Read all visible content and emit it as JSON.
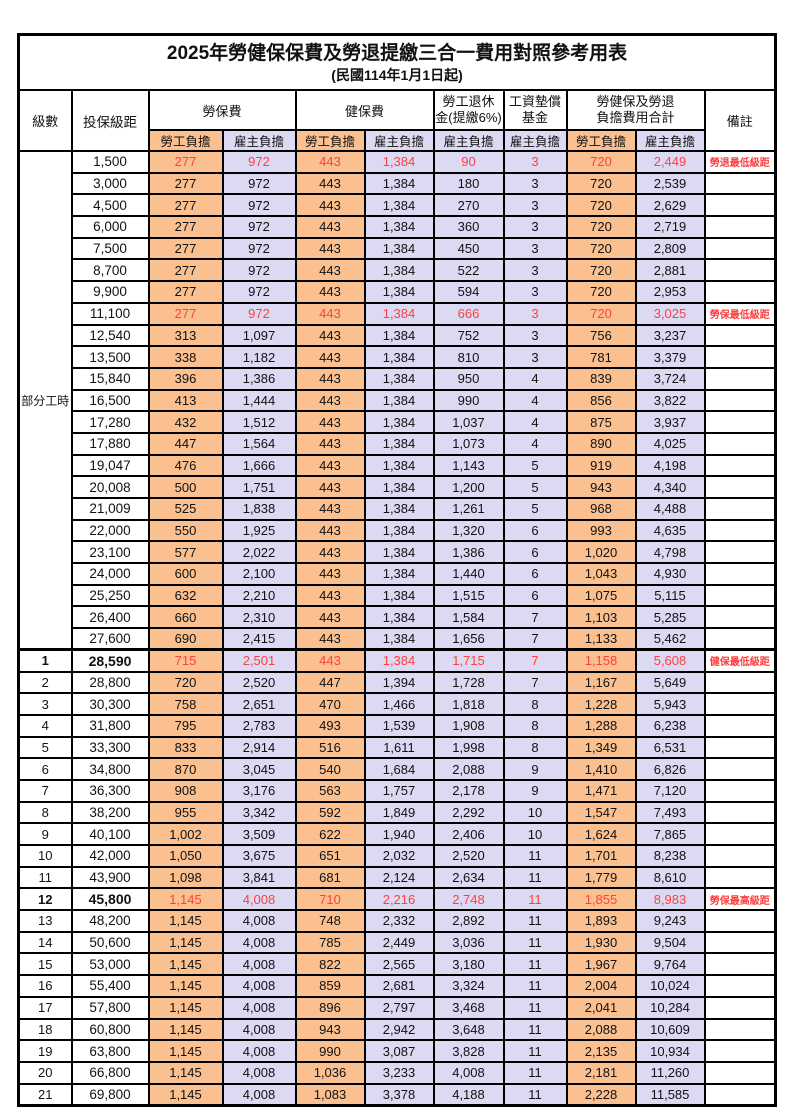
{
  "title": "2025年勞健保保費及勞退提繳三合一費用對照參考用表",
  "subtitle": "(民國114年1月1日起)",
  "group_label": "部分工時",
  "header": {
    "level": "級數",
    "bracket": "投保級距",
    "labor_fee": "勞保費",
    "health_fee": "健保費",
    "pension_line1": "勞工退休",
    "pension_line2": "金(提繳6%)",
    "wage_fund_line1": "工資墊償",
    "wage_fund_line2": "基金",
    "total_line1": "勞健保及勞退",
    "total_line2": "負擔費用合計",
    "note": "備註",
    "employee_share": "勞工負擔",
    "employer_share": "雇主負擔"
  },
  "colors": {
    "employee_bg": "#FAC08F",
    "employer_bg": "#DCD9F2",
    "highlight_text": "#FF4040"
  },
  "rows": [
    {
      "group": "parttime",
      "level": "",
      "bracket": "1,500",
      "values": [
        "277",
        "972",
        "443",
        "1,384",
        "90",
        "3",
        "720",
        "2,449"
      ],
      "note": "勞退最低級距",
      "highlight": true,
      "bold": false
    },
    {
      "group": "parttime",
      "level": "",
      "bracket": "3,000",
      "values": [
        "277",
        "972",
        "443",
        "1,384",
        "180",
        "3",
        "720",
        "2,539"
      ],
      "note": "",
      "highlight": false,
      "bold": false
    },
    {
      "group": "parttime",
      "level": "",
      "bracket": "4,500",
      "values": [
        "277",
        "972",
        "443",
        "1,384",
        "270",
        "3",
        "720",
        "2,629"
      ],
      "note": "",
      "highlight": false,
      "bold": false
    },
    {
      "group": "parttime",
      "level": "",
      "bracket": "6,000",
      "values": [
        "277",
        "972",
        "443",
        "1,384",
        "360",
        "3",
        "720",
        "2,719"
      ],
      "note": "",
      "highlight": false,
      "bold": false
    },
    {
      "group": "parttime",
      "level": "",
      "bracket": "7,500",
      "values": [
        "277",
        "972",
        "443",
        "1,384",
        "450",
        "3",
        "720",
        "2,809"
      ],
      "note": "",
      "highlight": false,
      "bold": false
    },
    {
      "group": "parttime",
      "level": "",
      "bracket": "8,700",
      "values": [
        "277",
        "972",
        "443",
        "1,384",
        "522",
        "3",
        "720",
        "2,881"
      ],
      "note": "",
      "highlight": false,
      "bold": false
    },
    {
      "group": "parttime",
      "level": "",
      "bracket": "9,900",
      "values": [
        "277",
        "972",
        "443",
        "1,384",
        "594",
        "3",
        "720",
        "2,953"
      ],
      "note": "",
      "highlight": false,
      "bold": false
    },
    {
      "group": "parttime",
      "level": "",
      "bracket": "11,100",
      "values": [
        "277",
        "972",
        "443",
        "1,384",
        "666",
        "3",
        "720",
        "3,025"
      ],
      "note": "勞保最低級距",
      "highlight": true,
      "bold": false
    },
    {
      "group": "parttime",
      "level": "",
      "bracket": "12,540",
      "values": [
        "313",
        "1,097",
        "443",
        "1,384",
        "752",
        "3",
        "756",
        "3,237"
      ],
      "note": "",
      "highlight": false,
      "bold": false
    },
    {
      "group": "parttime",
      "level": "",
      "bracket": "13,500",
      "values": [
        "338",
        "1,182",
        "443",
        "1,384",
        "810",
        "3",
        "781",
        "3,379"
      ],
      "note": "",
      "highlight": false,
      "bold": false
    },
    {
      "group": "parttime",
      "level": "",
      "bracket": "15,840",
      "values": [
        "396",
        "1,386",
        "443",
        "1,384",
        "950",
        "4",
        "839",
        "3,724"
      ],
      "note": "",
      "highlight": false,
      "bold": false
    },
    {
      "group": "parttime",
      "level": "",
      "bracket": "16,500",
      "values": [
        "413",
        "1,444",
        "443",
        "1,384",
        "990",
        "4",
        "856",
        "3,822"
      ],
      "note": "",
      "highlight": false,
      "bold": false
    },
    {
      "group": "parttime",
      "level": "",
      "bracket": "17,280",
      "values": [
        "432",
        "1,512",
        "443",
        "1,384",
        "1,037",
        "4",
        "875",
        "3,937"
      ],
      "note": "",
      "highlight": false,
      "bold": false
    },
    {
      "group": "parttime",
      "level": "",
      "bracket": "17,880",
      "values": [
        "447",
        "1,564",
        "443",
        "1,384",
        "1,073",
        "4",
        "890",
        "4,025"
      ],
      "note": "",
      "highlight": false,
      "bold": false
    },
    {
      "group": "parttime",
      "level": "",
      "bracket": "19,047",
      "values": [
        "476",
        "1,666",
        "443",
        "1,384",
        "1,143",
        "5",
        "919",
        "4,198"
      ],
      "note": "",
      "highlight": false,
      "bold": false
    },
    {
      "group": "parttime",
      "level": "",
      "bracket": "20,008",
      "values": [
        "500",
        "1,751",
        "443",
        "1,384",
        "1,200",
        "5",
        "943",
        "4,340"
      ],
      "note": "",
      "highlight": false,
      "bold": false
    },
    {
      "group": "parttime",
      "level": "",
      "bracket": "21,009",
      "values": [
        "525",
        "1,838",
        "443",
        "1,384",
        "1,261",
        "5",
        "968",
        "4,488"
      ],
      "note": "",
      "highlight": false,
      "bold": false
    },
    {
      "group": "parttime",
      "level": "",
      "bracket": "22,000",
      "values": [
        "550",
        "1,925",
        "443",
        "1,384",
        "1,320",
        "6",
        "993",
        "4,635"
      ],
      "note": "",
      "highlight": false,
      "bold": false
    },
    {
      "group": "parttime",
      "level": "",
      "bracket": "23,100",
      "values": [
        "577",
        "2,022",
        "443",
        "1,384",
        "1,386",
        "6",
        "1,020",
        "4,798"
      ],
      "note": "",
      "highlight": false,
      "bold": false
    },
    {
      "group": "parttime",
      "level": "",
      "bracket": "24,000",
      "values": [
        "600",
        "2,100",
        "443",
        "1,384",
        "1,440",
        "6",
        "1,043",
        "4,930"
      ],
      "note": "",
      "highlight": false,
      "bold": false
    },
    {
      "group": "parttime",
      "level": "",
      "bracket": "25,250",
      "values": [
        "632",
        "2,210",
        "443",
        "1,384",
        "1,515",
        "6",
        "1,075",
        "5,115"
      ],
      "note": "",
      "highlight": false,
      "bold": false
    },
    {
      "group": "parttime",
      "level": "",
      "bracket": "26,400",
      "values": [
        "660",
        "2,310",
        "443",
        "1,384",
        "1,584",
        "7",
        "1,103",
        "5,285"
      ],
      "note": "",
      "highlight": false,
      "bold": false
    },
    {
      "group": "parttime",
      "level": "",
      "bracket": "27,600",
      "values": [
        "690",
        "2,415",
        "443",
        "1,384",
        "1,656",
        "7",
        "1,133",
        "5,462"
      ],
      "note": "",
      "highlight": false,
      "bold": false
    },
    {
      "group": "level",
      "level": "1",
      "bracket": "28,590",
      "values": [
        "715",
        "2,501",
        "443",
        "1,384",
        "1,715",
        "7",
        "1,158",
        "5,608"
      ],
      "note": "健保最低級距",
      "highlight": true,
      "bold": true
    },
    {
      "group": "level",
      "level": "2",
      "bracket": "28,800",
      "values": [
        "720",
        "2,520",
        "447",
        "1,394",
        "1,728",
        "7",
        "1,167",
        "5,649"
      ],
      "note": "",
      "highlight": false,
      "bold": false
    },
    {
      "group": "level",
      "level": "3",
      "bracket": "30,300",
      "values": [
        "758",
        "2,651",
        "470",
        "1,466",
        "1,818",
        "8",
        "1,228",
        "5,943"
      ],
      "note": "",
      "highlight": false,
      "bold": false
    },
    {
      "group": "level",
      "level": "4",
      "bracket": "31,800",
      "values": [
        "795",
        "2,783",
        "493",
        "1,539",
        "1,908",
        "8",
        "1,288",
        "6,238"
      ],
      "note": "",
      "highlight": false,
      "bold": false
    },
    {
      "group": "level",
      "level": "5",
      "bracket": "33,300",
      "values": [
        "833",
        "2,914",
        "516",
        "1,611",
        "1,998",
        "8",
        "1,349",
        "6,531"
      ],
      "note": "",
      "highlight": false,
      "bold": false
    },
    {
      "group": "level",
      "level": "6",
      "bracket": "34,800",
      "values": [
        "870",
        "3,045",
        "540",
        "1,684",
        "2,088",
        "9",
        "1,410",
        "6,826"
      ],
      "note": "",
      "highlight": false,
      "bold": false
    },
    {
      "group": "level",
      "level": "7",
      "bracket": "36,300",
      "values": [
        "908",
        "3,176",
        "563",
        "1,757",
        "2,178",
        "9",
        "1,471",
        "7,120"
      ],
      "note": "",
      "highlight": false,
      "bold": false
    },
    {
      "group": "level",
      "level": "8",
      "bracket": "38,200",
      "values": [
        "955",
        "3,342",
        "592",
        "1,849",
        "2,292",
        "10",
        "1,547",
        "7,493"
      ],
      "note": "",
      "highlight": false,
      "bold": false
    },
    {
      "group": "level",
      "level": "9",
      "bracket": "40,100",
      "values": [
        "1,002",
        "3,509",
        "622",
        "1,940",
        "2,406",
        "10",
        "1,624",
        "7,865"
      ],
      "note": "",
      "highlight": false,
      "bold": false
    },
    {
      "group": "level",
      "level": "10",
      "bracket": "42,000",
      "values": [
        "1,050",
        "3,675",
        "651",
        "2,032",
        "2,520",
        "11",
        "1,701",
        "8,238"
      ],
      "note": "",
      "highlight": false,
      "bold": false
    },
    {
      "group": "level",
      "level": "11",
      "bracket": "43,900",
      "values": [
        "1,098",
        "3,841",
        "681",
        "2,124",
        "2,634",
        "11",
        "1,779",
        "8,610"
      ],
      "note": "",
      "highlight": false,
      "bold": false
    },
    {
      "group": "level",
      "level": "12",
      "bracket": "45,800",
      "values": [
        "1,145",
        "4,008",
        "710",
        "2,216",
        "2,748",
        "11",
        "1,855",
        "8,983"
      ],
      "note": "勞保最高級距",
      "highlight": true,
      "bold": true
    },
    {
      "group": "level",
      "level": "13",
      "bracket": "48,200",
      "values": [
        "1,145",
        "4,008",
        "748",
        "2,332",
        "2,892",
        "11",
        "1,893",
        "9,243"
      ],
      "note": "",
      "highlight": false,
      "bold": false
    },
    {
      "group": "level",
      "level": "14",
      "bracket": "50,600",
      "values": [
        "1,145",
        "4,008",
        "785",
        "2,449",
        "3,036",
        "11",
        "1,930",
        "9,504"
      ],
      "note": "",
      "highlight": false,
      "bold": false
    },
    {
      "group": "level",
      "level": "15",
      "bracket": "53,000",
      "values": [
        "1,145",
        "4,008",
        "822",
        "2,565",
        "3,180",
        "11",
        "1,967",
        "9,764"
      ],
      "note": "",
      "highlight": false,
      "bold": false
    },
    {
      "group": "level",
      "level": "16",
      "bracket": "55,400",
      "values": [
        "1,145",
        "4,008",
        "859",
        "2,681",
        "3,324",
        "11",
        "2,004",
        "10,024"
      ],
      "note": "",
      "highlight": false,
      "bold": false
    },
    {
      "group": "level",
      "level": "17",
      "bracket": "57,800",
      "values": [
        "1,145",
        "4,008",
        "896",
        "2,797",
        "3,468",
        "11",
        "2,041",
        "10,284"
      ],
      "note": "",
      "highlight": false,
      "bold": false
    },
    {
      "group": "level",
      "level": "18",
      "bracket": "60,800",
      "values": [
        "1,145",
        "4,008",
        "943",
        "2,942",
        "3,648",
        "11",
        "2,088",
        "10,609"
      ],
      "note": "",
      "highlight": false,
      "bold": false
    },
    {
      "group": "level",
      "level": "19",
      "bracket": "63,800",
      "values": [
        "1,145",
        "4,008",
        "990",
        "3,087",
        "3,828",
        "11",
        "2,135",
        "10,934"
      ],
      "note": "",
      "highlight": false,
      "bold": false
    },
    {
      "group": "level",
      "level": "20",
      "bracket": "66,800",
      "values": [
        "1,145",
        "4,008",
        "1,036",
        "3,233",
        "4,008",
        "11",
        "2,181",
        "11,260"
      ],
      "note": "",
      "highlight": false,
      "bold": false
    },
    {
      "group": "level",
      "level": "21",
      "bracket": "69,800",
      "values": [
        "1,145",
        "4,008",
        "1,083",
        "3,378",
        "4,188",
        "11",
        "2,228",
        "11,585"
      ],
      "note": "",
      "highlight": false,
      "bold": false
    }
  ]
}
